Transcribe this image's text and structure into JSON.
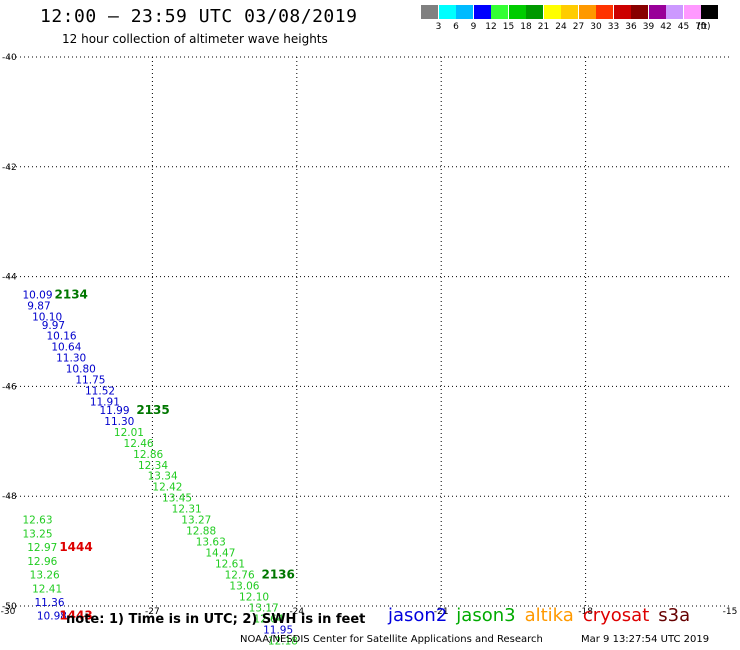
{
  "header": {
    "title": "12:00 – 23:59 UTC 03/08/2019",
    "subtitle": "12 hour collection of altimeter wave heights"
  },
  "color_scale": {
    "unit": "(ft)",
    "steps": [
      {
        "label": "3",
        "color": "#808080"
      },
      {
        "label": "6",
        "color": "#00ffff"
      },
      {
        "label": "9",
        "color": "#00bbff"
      },
      {
        "label": "12",
        "color": "#0000ff"
      },
      {
        "label": "15",
        "color": "#33ff33"
      },
      {
        "label": "18",
        "color": "#00cc00"
      },
      {
        "label": "21",
        "color": "#009900"
      },
      {
        "label": "24",
        "color": "#ffff00"
      },
      {
        "label": "27",
        "color": "#ffcc00"
      },
      {
        "label": "30",
        "color": "#ff9900"
      },
      {
        "label": "33",
        "color": "#ff3300"
      },
      {
        "label": "36",
        "color": "#cc0000"
      },
      {
        "label": "39",
        "color": "#880000"
      },
      {
        "label": "42",
        "color": "#990099"
      },
      {
        "label": "45",
        "color": "#cc99ff"
      },
      {
        "label": "70",
        "color": "#ff99ff"
      },
      {
        "label": "",
        "color": "#000000"
      }
    ]
  },
  "chart_data": {
    "type": "scatter",
    "xlim": [
      -30,
      -15
    ],
    "ylim": [
      -50,
      -40
    ],
    "x_ticks": [
      -30,
      -27,
      -24,
      -21,
      -18,
      -15
    ],
    "x_tick_labels": [
      "-30",
      "-27",
      "-24",
      "-21",
      "-18",
      "-15"
    ],
    "y_ticks": [
      -40,
      -42,
      -44,
      -46,
      -48,
      -50
    ],
    "y_tick_labels": [
      "-40",
      "-42",
      "-44",
      "-46",
      "-48",
      "-50"
    ],
    "grid": true,
    "colors": {
      "jason2": "#0000cc",
      "jason3": "#22cc22",
      "time_green": "#007700",
      "time_red": "#dd0000"
    },
    "points": [
      {
        "x": -29.7,
        "y": -44.4,
        "value": "10.09",
        "sat": "jason2"
      },
      {
        "x": -29.6,
        "y": -44.6,
        "value": "9.87",
        "sat": "jason2"
      },
      {
        "x": -29.5,
        "y": -44.8,
        "value": "10.10",
        "sat": "jason2"
      },
      {
        "x": -29.3,
        "y": -44.95,
        "value": "9.97",
        "sat": "jason2"
      },
      {
        "x": -29.2,
        "y": -45.15,
        "value": "10.16",
        "sat": "jason2"
      },
      {
        "x": -29.1,
        "y": -45.35,
        "value": "10.64",
        "sat": "jason2"
      },
      {
        "x": -29.0,
        "y": -45.55,
        "value": "11.30",
        "sat": "jason2"
      },
      {
        "x": -28.8,
        "y": -45.75,
        "value": "10.80",
        "sat": "jason2"
      },
      {
        "x": -28.6,
        "y": -45.95,
        "value": "11.75",
        "sat": "jason2"
      },
      {
        "x": -28.4,
        "y": -46.15,
        "value": "11.52",
        "sat": "jason2"
      },
      {
        "x": -28.3,
        "y": -46.35,
        "value": "11.91",
        "sat": "jason2"
      },
      {
        "x": -28.1,
        "y": -46.5,
        "value": "11.99",
        "sat": "jason2"
      },
      {
        "x": -28.0,
        "y": -46.7,
        "value": "11.30",
        "sat": "jason2"
      },
      {
        "x": -27.8,
        "y": -46.9,
        "value": "12.01",
        "sat": "jason3"
      },
      {
        "x": -27.6,
        "y": -47.1,
        "value": "12.46",
        "sat": "jason3"
      },
      {
        "x": -27.4,
        "y": -47.3,
        "value": "12.86",
        "sat": "jason3"
      },
      {
        "x": -27.3,
        "y": -47.5,
        "value": "12.34",
        "sat": "jason3"
      },
      {
        "x": -27.1,
        "y": -47.7,
        "value": "13.34",
        "sat": "jason3"
      },
      {
        "x": -27.0,
        "y": -47.9,
        "value": "12.42",
        "sat": "jason3"
      },
      {
        "x": -26.8,
        "y": -48.1,
        "value": "13.45",
        "sat": "jason3"
      },
      {
        "x": -26.6,
        "y": -48.3,
        "value": "12.31",
        "sat": "jason3"
      },
      {
        "x": -26.4,
        "y": -48.5,
        "value": "13.27",
        "sat": "jason3"
      },
      {
        "x": -26.3,
        "y": -48.7,
        "value": "12.88",
        "sat": "jason3"
      },
      {
        "x": -26.1,
        "y": -48.9,
        "value": "13.63",
        "sat": "jason3"
      },
      {
        "x": -25.9,
        "y": -49.1,
        "value": "14.47",
        "sat": "jason3"
      },
      {
        "x": -25.7,
        "y": -49.3,
        "value": "12.61",
        "sat": "jason3"
      },
      {
        "x": -25.5,
        "y": -49.5,
        "value": "12.76",
        "sat": "jason3"
      },
      {
        "x": -25.4,
        "y": -49.7,
        "value": "13.06",
        "sat": "jason3"
      },
      {
        "x": -25.2,
        "y": -49.9,
        "value": "12.10",
        "sat": "jason3"
      },
      {
        "x": -25.0,
        "y": -50.1,
        "value": "13.17",
        "sat": "jason3"
      },
      {
        "x": -24.9,
        "y": -50.3,
        "value": "12.64",
        "sat": "jason3"
      },
      {
        "x": -24.7,
        "y": -50.5,
        "value": "11.95",
        "sat": "jason2"
      },
      {
        "x": -24.6,
        "y": -50.7,
        "value": "12.18",
        "sat": "jason3"
      },
      {
        "x": -29.7,
        "y": -48.5,
        "value": "12.63",
        "sat": "jason3"
      },
      {
        "x": -29.7,
        "y": -48.75,
        "value": "13.25",
        "sat": "jason3"
      },
      {
        "x": -29.6,
        "y": -49.0,
        "value": "12.97",
        "sat": "jason3"
      },
      {
        "x": -29.6,
        "y": -49.25,
        "value": "12.96",
        "sat": "jason3"
      },
      {
        "x": -29.55,
        "y": -49.5,
        "value": "13.26",
        "sat": "jason3"
      },
      {
        "x": -29.5,
        "y": -49.75,
        "value": "12.41",
        "sat": "jason3"
      },
      {
        "x": -29.45,
        "y": -50.0,
        "value": "11.36",
        "sat": "jason2"
      },
      {
        "x": -29.4,
        "y": -50.25,
        "value": "10.98",
        "sat": "jason2"
      }
    ],
    "time_labels": [
      {
        "x": -29.2,
        "y": -44.4,
        "text": "2134",
        "color": "time_green"
      },
      {
        "x": -27.5,
        "y": -46.5,
        "text": "2135",
        "color": "time_green"
      },
      {
        "x": -24.9,
        "y": -49.5,
        "text": "2136",
        "color": "time_green"
      },
      {
        "x": -29.1,
        "y": -49.0,
        "text": "1444",
        "color": "time_red"
      },
      {
        "x": -29.1,
        "y": -50.25,
        "text": "1443",
        "color": "time_red"
      }
    ]
  },
  "note": "note: 1) Time is in UTC; 2) SWH is in feet",
  "legend": [
    {
      "label": "jason2",
      "color": "#0000dd"
    },
    {
      "label": "jason3",
      "color": "#00aa00"
    },
    {
      "label": "altika",
      "color": "#ff9900"
    },
    {
      "label": "cryosat",
      "color": "#dd0000"
    },
    {
      "label": "s3a",
      "color": "#660000"
    }
  ],
  "footer": {
    "credit": "NOAA/NESDIS Center for Satellite Applications and Research",
    "timestamp": "Mar  9 13:27:54 UTC 2019"
  }
}
